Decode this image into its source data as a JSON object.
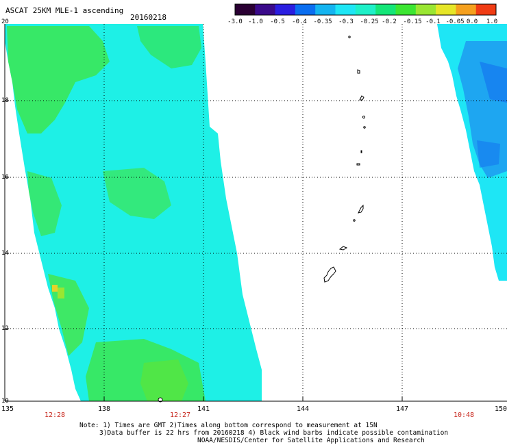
{
  "header": {
    "title": "ASCAT 25KM MLE-1 ascending",
    "date": "20160218"
  },
  "colorbar": {
    "ticks": [
      "-3.0",
      "-1.0",
      "-0.5",
      "-0.4",
      "-0.35",
      "-0.3",
      "-0.25",
      "-0.2",
      "-0.15",
      "-0.1",
      "-0.05",
      "0.0",
      "1.0"
    ],
    "colors": [
      "#2a0033",
      "#3a0a8a",
      "#2a1ee0",
      "#0a6ef0",
      "#14b4f0",
      "#1ee6f5",
      "#1ef0c8",
      "#14e678",
      "#3ce632",
      "#9ae632",
      "#e6e628",
      "#f5a01e",
      "#f03c14"
    ]
  },
  "axes": {
    "lat_labels": [
      "20",
      "18",
      "16",
      "14",
      "12",
      "10"
    ],
    "lon_labels": [
      "135",
      "138",
      "141",
      "144",
      "147",
      "150"
    ],
    "pass_times": [
      "12:28",
      "12:27",
      "10:48"
    ]
  },
  "footer": {
    "note_line1": "Note: 1) Times are GMT 2)Times along bottom correspond to measurement at 15N",
    "note_line2": "3)Data buffer is 22 hrs from 20160218 4) Black wind barbs indicate possible contamination",
    "credit": "NOAA/NESDIS/Center for Satellite Applications and Research"
  },
  "palette": {
    "swath_cyan": "#1ef0e6",
    "swath_green": "#3ce650",
    "swath_mid": "#1ef0b0",
    "swath_blue": "#1eaaf0",
    "time_red": "#c8281e"
  }
}
